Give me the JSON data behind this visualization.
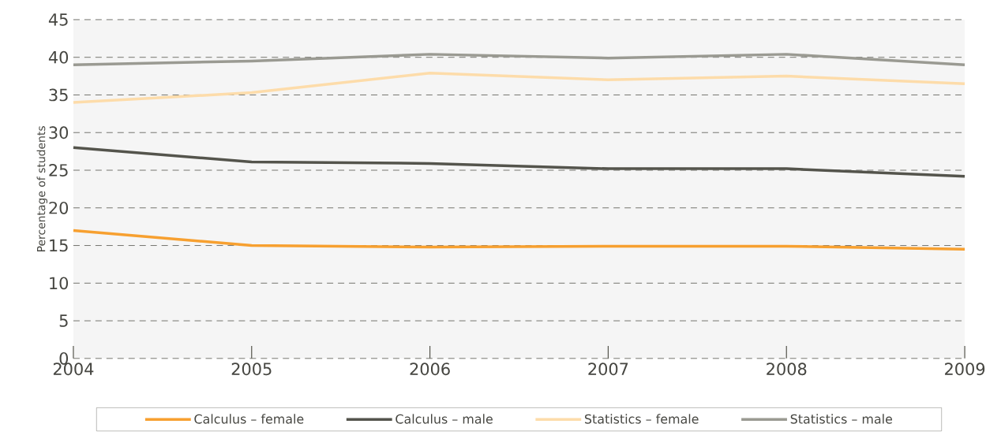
{
  "chart_data": {
    "type": "line",
    "ylabel": "Percentage of students",
    "x": [
      2004,
      2005,
      2006,
      2007,
      2008,
      2009
    ],
    "xlim": [
      2004,
      2009
    ],
    "xticks": [
      2004,
      2005,
      2006,
      2007,
      2008,
      2009
    ],
    "ylim": [
      0,
      45
    ],
    "yticks": [
      0,
      5,
      10,
      15,
      20,
      25,
      30,
      35,
      40,
      45
    ],
    "grid": "y",
    "legend": "bottom",
    "marker": "none",
    "line_style": "solid",
    "series": [
      {
        "name": "Calculus – female",
        "color": "#f7a030",
        "values": [
          17.0,
          15.0,
          14.8,
          14.9,
          14.9,
          14.5
        ]
      },
      {
        "name": "Calculus – male",
        "color": "#54544c",
        "values": [
          28.0,
          26.1,
          25.9,
          25.2,
          25.2,
          24.2
        ]
      },
      {
        "name": "Statistics – female",
        "color": "#fddcaa",
        "values": [
          34.0,
          35.3,
          37.9,
          37.0,
          37.5,
          36.5
        ]
      },
      {
        "name": "Statistics – male",
        "color": "#9a9a92",
        "values": [
          39.0,
          39.5,
          40.4,
          39.9,
          40.4,
          39.0
        ]
      }
    ]
  }
}
